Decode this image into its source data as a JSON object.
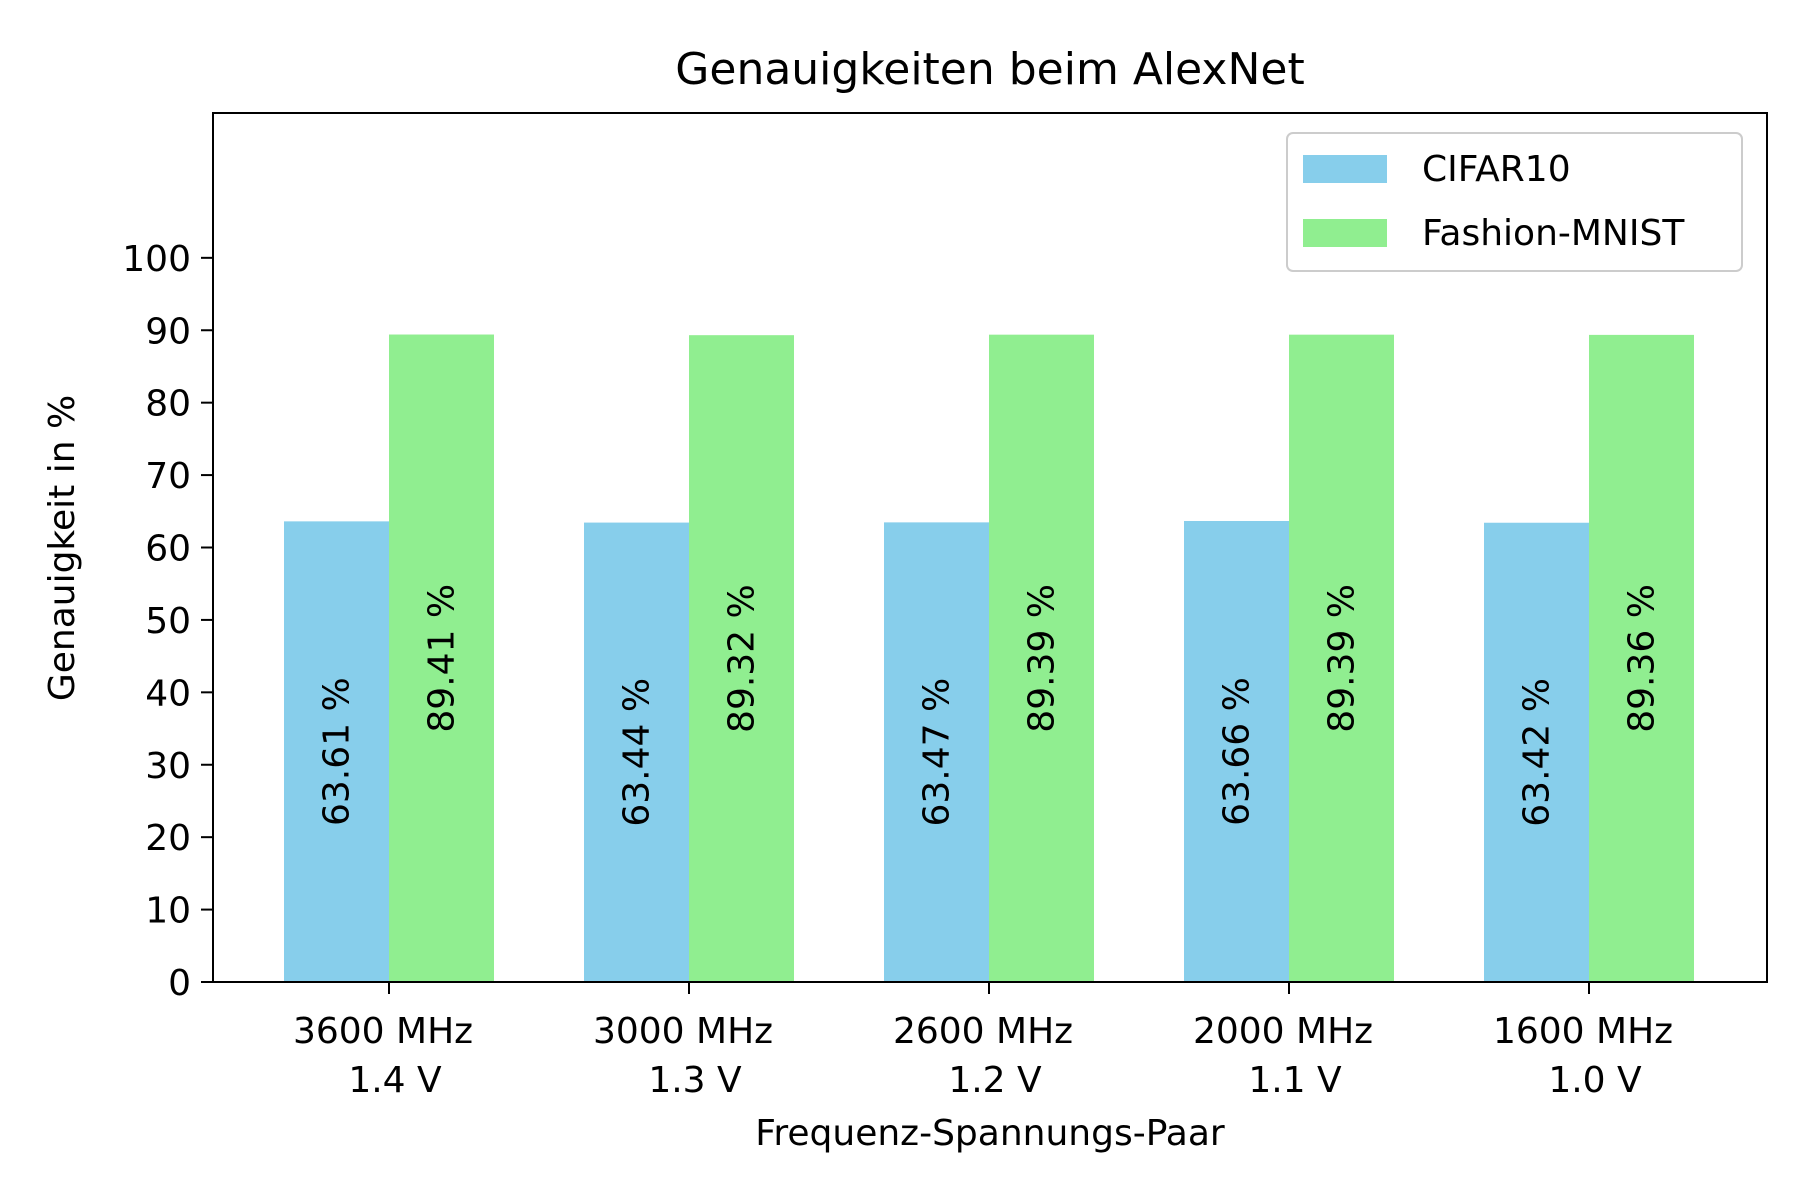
{
  "chart_data": {
    "type": "bar",
    "title": "Genauigkeiten beim AlexNet",
    "xlabel": "Frequenz-Spannungs-Paar",
    "ylabel": "Genauigkeit in %",
    "categories": [
      [
        "3600 MHz",
        "1.4 V"
      ],
      [
        "3000 MHz",
        "1.3 V"
      ],
      [
        "2600 MHz",
        "1.2 V"
      ],
      [
        "2000 MHz",
        "1.1 V"
      ],
      [
        "1600 MHz",
        "1.0 V"
      ]
    ],
    "series": [
      {
        "name": "CIFAR10",
        "color": "#87ceeb",
        "values": [
          63.61,
          63.44,
          63.47,
          63.66,
          63.42
        ],
        "labels": [
          "63.61 %",
          "63.44 %",
          "63.47 %",
          "63.66 %",
          "63.42 %"
        ]
      },
      {
        "name": "Fashion-MNIST",
        "color": "#90ee90",
        "values": [
          89.41,
          89.32,
          89.39,
          89.39,
          89.36
        ],
        "labels": [
          "89.41 %",
          "89.32 %",
          "89.39 %",
          "89.39 %",
          "89.36 %"
        ]
      }
    ],
    "ylim": [
      0,
      120
    ],
    "yticks": [
      0,
      10,
      20,
      30,
      40,
      50,
      60,
      70,
      80,
      90,
      100
    ],
    "legend_position": "top-right",
    "grid": false
  }
}
